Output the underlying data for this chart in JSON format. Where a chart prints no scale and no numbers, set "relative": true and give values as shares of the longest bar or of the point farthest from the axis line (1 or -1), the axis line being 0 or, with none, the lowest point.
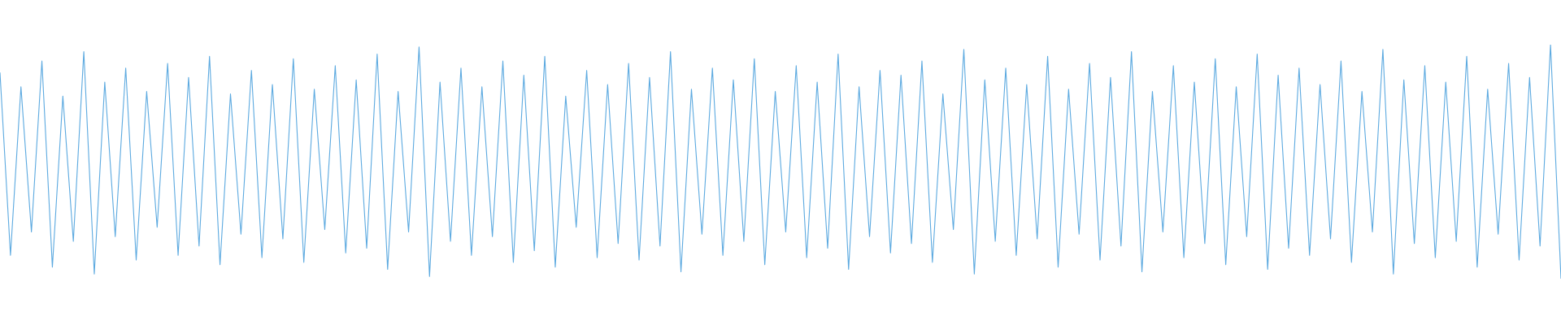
{
  "chart_data": {
    "type": "line",
    "relative": true,
    "color": "#5daae0",
    "line_style": "solid",
    "marker": "none",
    "legend": false,
    "categories": [
      null,
      null,
      null,
      null,
      null,
      null,
      null,
      null,
      null,
      null,
      null,
      null,
      null,
      null,
      null,
      null,
      null,
      null,
      null,
      null,
      null,
      null,
      null,
      null,
      null,
      null,
      null,
      null,
      null,
      null,
      null,
      null,
      null,
      null,
      null,
      null,
      null,
      null,
      null,
      null,
      null,
      null,
      null,
      null,
      null,
      null,
      null,
      null,
      null,
      null,
      null,
      null,
      null,
      null,
      null,
      null,
      null,
      null,
      null,
      null,
      null,
      null,
      null,
      null,
      null,
      null,
      null,
      null,
      null,
      null,
      null,
      null,
      null,
      null,
      null,
      null,
      null,
      null,
      null,
      null,
      null,
      null,
      null,
      null,
      null,
      null,
      null,
      null,
      null,
      null,
      null,
      null,
      null,
      null,
      null,
      null,
      null,
      null,
      null,
      null,
      null,
      null,
      null,
      null,
      null,
      null,
      null,
      null,
      null,
      null,
      null,
      null,
      null,
      null,
      null,
      null,
      null,
      null,
      null,
      null,
      null,
      null,
      null,
      null,
      null,
      null,
      null,
      null,
      null,
      null,
      null,
      null,
      null,
      null,
      null,
      null,
      null,
      null,
      null,
      null,
      null,
      null,
      null,
      null,
      null,
      null,
      null,
      null,
      null,
      null
    ],
    "values": [
      0.88,
      0.1,
      0.82,
      0.2,
      0.93,
      0.05,
      0.78,
      0.16,
      0.97,
      0.02,
      0.84,
      0.18,
      0.9,
      0.08,
      0.8,
      0.22,
      0.92,
      0.1,
      0.86,
      0.14,
      0.95,
      0.06,
      0.79,
      0.19,
      0.89,
      0.09,
      0.83,
      0.17,
      0.94,
      0.07,
      0.81,
      0.21,
      0.91,
      0.11,
      0.85,
      0.13,
      0.96,
      0.04,
      0.8,
      0.2,
      0.99,
      0.01,
      0.84,
      0.16,
      0.9,
      0.1,
      0.82,
      0.18,
      0.93,
      0.07,
      0.87,
      0.12,
      0.95,
      0.05,
      0.78,
      0.22,
      0.89,
      0.09,
      0.83,
      0.15,
      0.92,
      0.08,
      0.86,
      0.14,
      0.97,
      0.03,
      0.81,
      0.19,
      0.9,
      0.1,
      0.85,
      0.16,
      0.94,
      0.06,
      0.8,
      0.2,
      0.91,
      0.09,
      0.84,
      0.13,
      0.96,
      0.04,
      0.82,
      0.18,
      0.89,
      0.11,
      0.87,
      0.15,
      0.93,
      0.07,
      0.79,
      0.21,
      0.98,
      0.02,
      0.85,
      0.16,
      0.9,
      0.1,
      0.83,
      0.17,
      0.95,
      0.05,
      0.81,
      0.19,
      0.92,
      0.08,
      0.86,
      0.14,
      0.97,
      0.03,
      0.8,
      0.2,
      0.91,
      0.09,
      0.84,
      0.15,
      0.94,
      0.06,
      0.82,
      0.18,
      0.96,
      0.04,
      0.87,
      0.13,
      0.9,
      0.1,
      0.83,
      0.17,
      0.93,
      0.07,
      0.8,
      0.2,
      0.98,
      0.02,
      0.85,
      0.15,
      0.91,
      0.09,
      0.84,
      0.16,
      0.95,
      0.05,
      0.81,
      0.19,
      0.92,
      0.08,
      0.86,
      0.14,
      1.0,
      0.0
    ]
  }
}
